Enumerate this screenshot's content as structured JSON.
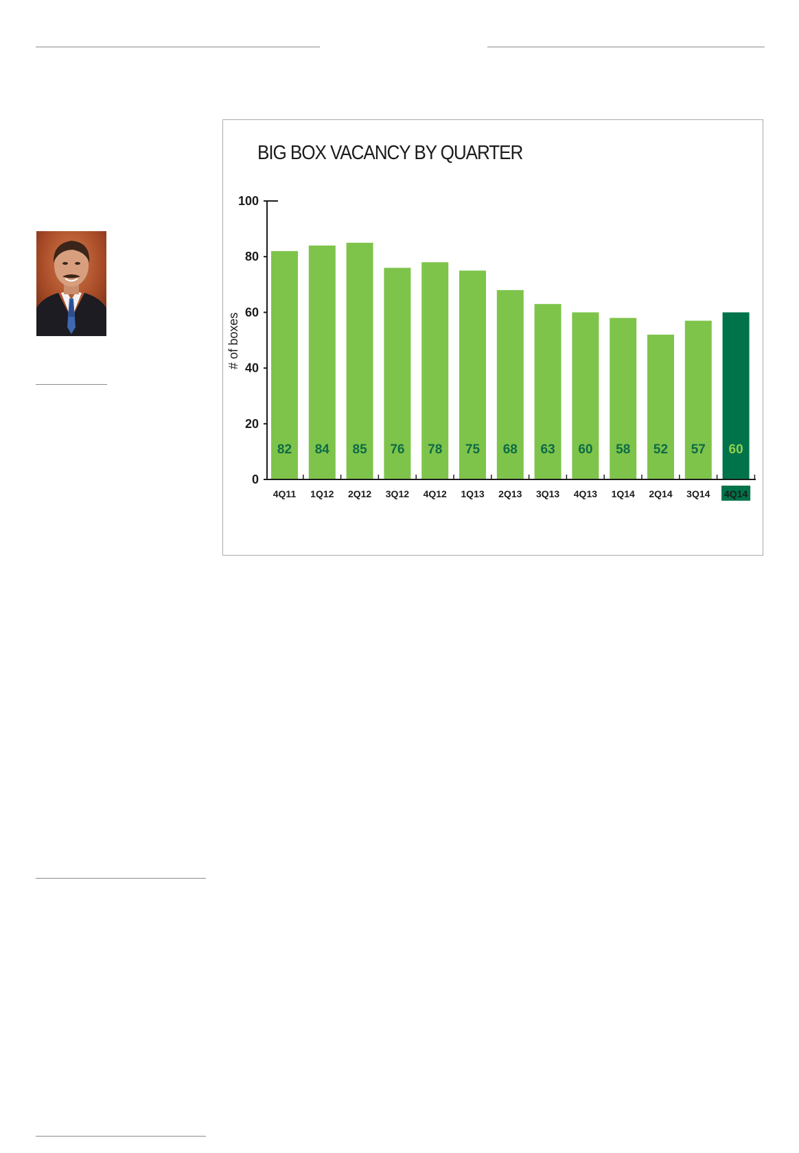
{
  "chart_data": {
    "type": "bar",
    "title": "BIG BOX VACANCY BY QUARTER",
    "xlabel": "",
    "ylabel": "# of boxes",
    "ylim": [
      0,
      100
    ],
    "yticks": [
      0,
      20,
      40,
      60,
      80,
      100
    ],
    "categories": [
      "4Q11",
      "1Q12",
      "2Q12",
      "3Q12",
      "4Q12",
      "1Q13",
      "2Q13",
      "3Q13",
      "4Q13",
      "1Q14",
      "2Q14",
      "3Q14",
      "4Q14"
    ],
    "values": [
      82,
      84,
      85,
      76,
      78,
      75,
      68,
      63,
      60,
      58,
      52,
      57,
      60
    ],
    "highlight_category": "4Q14",
    "grid": false,
    "colors": {
      "bar": "#7ec44a",
      "bar_highlight": "#00734a",
      "value_label": "#0e6b46",
      "value_label_highlight": "#8fd14f",
      "highlight_tick_bg": "#00734a",
      "highlight_tick_text": "#ffffff"
    }
  }
}
